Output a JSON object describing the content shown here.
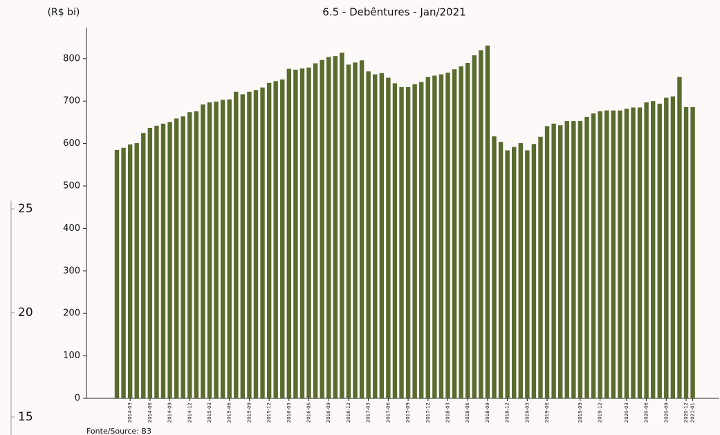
{
  "chart_data": {
    "type": "bar",
    "title": "6.5 - Debêntures - Jan/2021",
    "y_label": "(R$ bi)",
    "source": "Fonte/Source: B3",
    "color": "#5a6b2e",
    "categories": [
      null,
      null,
      "2014-03",
      null,
      null,
      "2014-06",
      null,
      null,
      "2014-09",
      null,
      null,
      "2014-12",
      null,
      null,
      "2015-03",
      null,
      null,
      "2015-06",
      null,
      null,
      "2015-09",
      null,
      null,
      "2015-12",
      null,
      null,
      "2016-03",
      null,
      null,
      "2016-06",
      null,
      null,
      "2016-09",
      null,
      null,
      "2016-12",
      null,
      null,
      "2017-03",
      null,
      null,
      "2017-06",
      null,
      null,
      "2017-09",
      null,
      null,
      "2017-12",
      null,
      null,
      "2018-03",
      null,
      null,
      "2018-06",
      null,
      null,
      "2018-09",
      null,
      null,
      "2018-12",
      null,
      null,
      "2019-03",
      null,
      null,
      "2019-06",
      null,
      null,
      null,
      null,
      "2019-09",
      null,
      null,
      "2019-12",
      null,
      null,
      null,
      "2020-03",
      null,
      null,
      "2020-06",
      null,
      null,
      "2020-09",
      null,
      null,
      "2020-12",
      "2021-01"
    ],
    "values": [
      585,
      590,
      598,
      601,
      625,
      637,
      642,
      647,
      651,
      659,
      664,
      674,
      676,
      692,
      697,
      699,
      703,
      704,
      722,
      716,
      722,
      726,
      732,
      743,
      747,
      751,
      776,
      774,
      777,
      779,
      789,
      797,
      804,
      806,
      814,
      786,
      791,
      796,
      770,
      763,
      766,
      755,
      742,
      733,
      733,
      740,
      745,
      757,
      760,
      763,
      767,
      775,
      782,
      790,
      808,
      820,
      831,
      617,
      604,
      584,
      592,
      601,
      584,
      599,
      616,
      641,
      647,
      643,
      653,
      653,
      653,
      663,
      671,
      676,
      678,
      678,
      678,
      682,
      685,
      685,
      697,
      700,
      694,
      708,
      711,
      757,
      686,
      686
    ],
    "ylim": [
      0,
      873
    ],
    "yticks": [
      0,
      100,
      200,
      300,
      400,
      500,
      600,
      700,
      800
    ]
  },
  "side_axis": {
    "ticks": [
      25,
      20,
      15
    ]
  }
}
